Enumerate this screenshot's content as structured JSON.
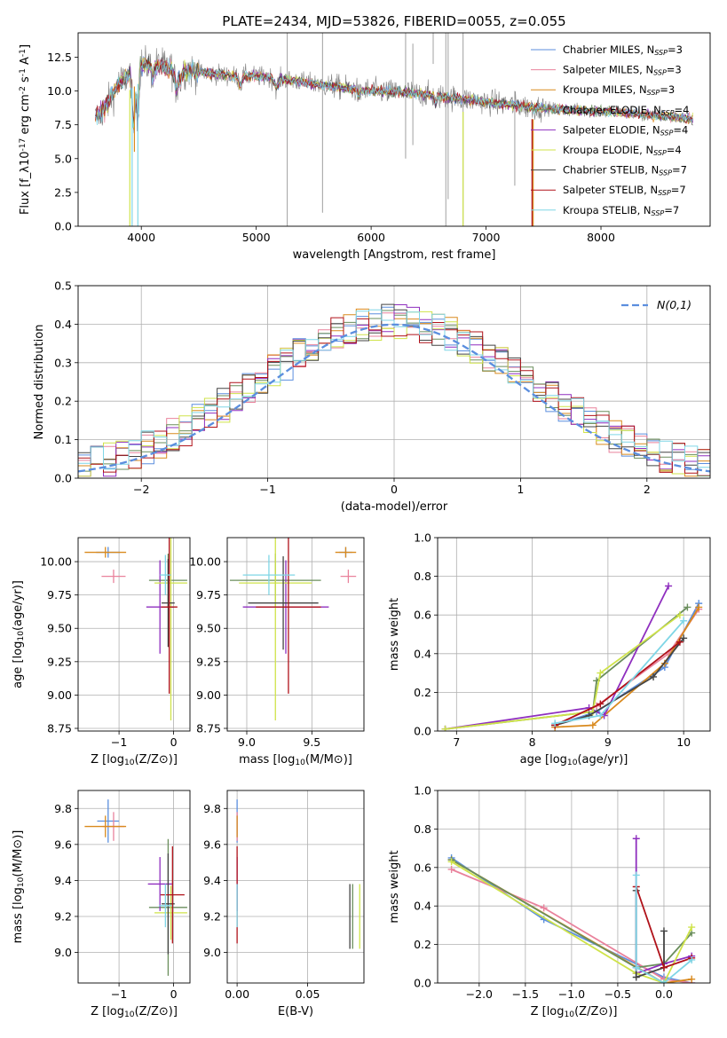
{
  "figure_title": "PLATE=2434, MJD=53826, FIBERID=0055, z=0.055",
  "colors": {
    "Chabrier MILES": "#5b8ede",
    "Salpeter MILES": "#e9829c",
    "Kroupa MILES": "#d98a1e",
    "Chabrier ELODIE": "#6a8e5c",
    "Salpeter ELODIE": "#8f2fbf",
    "Kroupa ELODIE": "#cfe34a",
    "Chabrier STELIB": "#444444",
    "Salpeter STELIB": "#b0121a",
    "Kroupa STELIB": "#7fd6e6",
    "data": "#7f7f7f",
    "normal": "#5b8ede",
    "grid": "#b0b0b0"
  },
  "chart_data": [
    {
      "id": "spectrum",
      "type": "line",
      "title": "",
      "xlabel": "wavelength [Angstrom, rest frame]",
      "ylabel": "Flux [f_λ10^{-17} erg cm^{-2} s^{-1} A^{-1}]",
      "xlim": [
        3450,
        8950
      ],
      "ylim": [
        0,
        14.3
      ],
      "xticks": [
        4000,
        5000,
        6000,
        7000,
        8000
      ],
      "yticks": [
        0.0,
        2.5,
        5.0,
        7.5,
        10.0,
        12.5
      ],
      "grid": false,
      "legend": "upper-right",
      "continuum_knots": {
        "x": [
          3600,
          3700,
          3800,
          3900,
          4000,
          4100,
          4300,
          4600,
          4800,
          5000,
          5300,
          5600,
          6000,
          6300,
          6600,
          6800,
          7100,
          7400,
          7700,
          8000,
          8300,
          8600,
          8800
        ],
        "y": [
          8.0,
          8.9,
          10.5,
          11.2,
          11.9,
          12.0,
          11.6,
          11.3,
          11.1,
          11.1,
          10.8,
          10.4,
          10.0,
          9.9,
          9.6,
          9.4,
          9.1,
          8.8,
          8.6,
          8.5,
          8.3,
          8.1,
          7.9
        ]
      },
      "model_xrange": [
        3600,
        8800
      ],
      "data_xrange": [
        3600,
        8800
      ],
      "legend_entries": [
        "Chabrier MILES, N_{SSP}=3",
        "Salpeter MILES, N_{SSP}=3",
        "Kroupa MILES, N_{SSP}=3",
        "Chabrier ELODIE, N_{SSP}=4",
        "Salpeter ELODIE, N_{SSP}=4",
        "Kroupa ELODIE, N_{SSP}=4",
        "Chabrier STELIB, N_{SSP}=7",
        "Salpeter STELIB, N_{SSP}=7",
        "Kroupa STELIB, N_{SSP}=7"
      ],
      "legend_models": [
        "Chabrier MILES",
        "Salpeter MILES",
        "Kroupa MILES",
        "Chabrier ELODIE",
        "Salpeter ELODIE",
        "Kroupa ELODIE",
        "Chabrier STELIB",
        "Salpeter STELIB",
        "Kroupa STELIB"
      ]
    },
    {
      "id": "residuals",
      "type": "line",
      "xlabel": "(data-model)/error",
      "ylabel": "Normed distribution",
      "xlim": [
        -2.5,
        2.5
      ],
      "ylim": [
        0,
        0.5
      ],
      "xticks": [
        -2,
        -1,
        0,
        1,
        2
      ],
      "yticks": [
        0.0,
        0.1,
        0.2,
        0.3,
        0.4,
        0.5
      ],
      "grid": true,
      "legend": "upper-right",
      "legend_label": "N(0,1)",
      "bin_width": 0.1,
      "bin_start": -2.5,
      "series_models": [
        "Chabrier MILES",
        "Salpeter MILES",
        "Kroupa MILES",
        "Chabrier ELODIE",
        "Salpeter ELODIE",
        "Kroupa ELODIE",
        "Chabrier STELIB",
        "Salpeter STELIB",
        "Kroupa STELIB"
      ]
    },
    {
      "id": "z_age",
      "type": "scatter",
      "xlabel": "Z [log10(Z/Z⊙)]",
      "ylabel": "age [log10(age/yr)]",
      "xlim": [
        -1.75,
        0.3
      ],
      "ylim": [
        8.73,
        10.18
      ],
      "xticks": [
        -1,
        0
      ],
      "yticks": [
        8.75,
        9.0,
        9.25,
        9.5,
        9.75,
        10.0
      ],
      "grid": true,
      "points": [
        {
          "model": "Chabrier MILES",
          "x": -1.2,
          "xerr": 0.22,
          "y": 10.07,
          "yerr": 0.04
        },
        {
          "model": "Salpeter MILES",
          "x": -1.1,
          "xerr": 0.22,
          "y": 9.89,
          "yerr": 0.05
        },
        {
          "model": "Kroupa MILES",
          "x": -1.25,
          "xerr": 0.38,
          "y": 10.07,
          "yerr": 0.04
        },
        {
          "model": "Chabrier ELODIE",
          "x": -0.1,
          "xerr": 0.35,
          "y": 9.86,
          "yerr": 0.2
        },
        {
          "model": "Salpeter ELODIE",
          "x": -0.25,
          "xerr": 0.25,
          "y": 9.66,
          "yerr": 0.35
        },
        {
          "model": "Kroupa ELODIE",
          "x": -0.05,
          "xerr": 0.3,
          "y": 9.84,
          "yerr": 1.03
        },
        {
          "model": "Chabrier STELIB",
          "x": -0.1,
          "xerr": 0.12,
          "y": 9.69,
          "yerr": 0.33
        },
        {
          "model": "Salpeter STELIB",
          "x": -0.08,
          "xerr": 0.15,
          "y": 9.66,
          "yerr": 0.65
        },
        {
          "model": "Kroupa STELIB",
          "x": -0.15,
          "xerr": 0.1,
          "y": 9.9,
          "yerr": 0.15
        }
      ]
    },
    {
      "id": "mass_age",
      "type": "scatter",
      "xlabel": "mass [log10(M/M⊙)]",
      "ylabel": "",
      "xlim": [
        8.85,
        9.9
      ],
      "ylim": [
        8.73,
        10.18
      ],
      "xticks": [
        9.0,
        9.5
      ],
      "yticks": [
        8.75,
        9.0,
        9.25,
        9.5,
        9.75,
        10.0
      ],
      "grid": true,
      "points": [
        {
          "model": "Chabrier MILES",
          "x": 9.76,
          "xerr": 0.05,
          "y": 10.07,
          "yerr": 0.04
        },
        {
          "model": "Salpeter MILES",
          "x": 9.78,
          "xerr": 0.06,
          "y": 9.89,
          "yerr": 0.05
        },
        {
          "model": "Kroupa MILES",
          "x": 9.76,
          "xerr": 0.08,
          "y": 10.07,
          "yerr": 0.04
        },
        {
          "model": "Chabrier ELODIE",
          "x": 9.22,
          "xerr": 0.35,
          "y": 9.86,
          "yerr": 0.2
        },
        {
          "model": "Salpeter ELODIE",
          "x": 9.3,
          "xerr": 0.33,
          "y": 9.66,
          "yerr": 0.35
        },
        {
          "model": "Kroupa ELODIE",
          "x": 9.22,
          "xerr": 0.28,
          "y": 9.84,
          "yerr": 1.03
        },
        {
          "model": "Chabrier STELIB",
          "x": 9.28,
          "xerr": 0.27,
          "y": 9.69,
          "yerr": 0.35
        },
        {
          "model": "Salpeter STELIB",
          "x": 9.32,
          "xerr": 0.25,
          "y": 9.66,
          "yerr": 0.65
        },
        {
          "model": "Kroupa STELIB",
          "x": 9.17,
          "xerr": 0.2,
          "y": 9.9,
          "yerr": 0.15
        }
      ]
    },
    {
      "id": "age_weight",
      "type": "line",
      "xlabel": "age  [log10(age/yr)]",
      "ylabel": "mass weight",
      "xlim": [
        6.75,
        10.35
      ],
      "ylim": [
        0,
        1.0
      ],
      "xticks": [
        7,
        8,
        9,
        10
      ],
      "yticks": [
        0.0,
        0.2,
        0.4,
        0.6,
        0.8,
        1.0
      ],
      "grid": true,
      "series": [
        {
          "model": "Chabrier MILES",
          "x": [
            8.3,
            8.85,
            9.75,
            10.2
          ],
          "y": [
            0.03,
            0.1,
            0.33,
            0.66
          ]
        },
        {
          "model": "Salpeter MILES",
          "x": [
            8.3,
            8.85,
            9.8,
            10.2
          ],
          "y": [
            0.03,
            0.13,
            0.4,
            0.63
          ]
        },
        {
          "model": "Kroupa MILES",
          "x": [
            8.3,
            8.8,
            9.75,
            10.2
          ],
          "y": [
            0.02,
            0.03,
            0.35,
            0.64
          ]
        },
        {
          "model": "Chabrier ELODIE",
          "x": [
            6.85,
            8.8,
            8.85,
            10.05
          ],
          "y": [
            0.01,
            0.1,
            0.26,
            0.64
          ]
        },
        {
          "model": "Salpeter ELODIE",
          "x": [
            6.85,
            8.75,
            8.95,
            9.8
          ],
          "y": [
            0.01,
            0.12,
            0.08,
            0.75
          ]
        },
        {
          "model": "Kroupa ELODIE",
          "x": [
            6.85,
            8.8,
            8.9,
            9.95
          ],
          "y": [
            0.01,
            0.1,
            0.3,
            0.6
          ]
        },
        {
          "model": "Chabrier STELIB",
          "x": [
            8.3,
            8.75,
            9.6,
            10.0
          ],
          "y": [
            0.03,
            0.08,
            0.28,
            0.48
          ]
        },
        {
          "model": "Salpeter STELIB",
          "x": [
            8.3,
            8.9,
            9.95
          ],
          "y": [
            0.03,
            0.14,
            0.46
          ]
        },
        {
          "model": "Kroupa STELIB",
          "x": [
            8.3,
            8.9,
            10.0
          ],
          "y": [
            0.04,
            0.08,
            0.57
          ]
        }
      ]
    },
    {
      "id": "z_mass",
      "type": "scatter",
      "xlabel": "Z [log10(Z/Z⊙)]",
      "ylabel": "mass [log10(M/M⊙)]",
      "xlim": [
        -1.75,
        0.3
      ],
      "ylim": [
        8.83,
        9.9
      ],
      "xticks": [
        -1,
        0
      ],
      "yticks": [
        9.0,
        9.2,
        9.4,
        9.6,
        9.8
      ],
      "grid": true,
      "points": [
        {
          "model": "Chabrier MILES",
          "x": -1.2,
          "xerr": 0.2,
          "y": 9.73,
          "yerr": 0.12
        },
        {
          "model": "Salpeter MILES",
          "x": -1.1,
          "xerr": 0.2,
          "y": 9.7,
          "yerr": 0.08
        },
        {
          "model": "Kroupa MILES",
          "x": -1.25,
          "xerr": 0.38,
          "y": 9.7,
          "yerr": 0.06
        },
        {
          "model": "Chabrier ELODIE",
          "x": -0.1,
          "xerr": 0.35,
          "y": 9.25,
          "yerr": 0.38
        },
        {
          "model": "Salpeter ELODIE",
          "x": -0.25,
          "xerr": 0.22,
          "y": 9.38,
          "yerr": 0.15
        },
        {
          "model": "Kroupa ELODIE",
          "x": -0.05,
          "xerr": 0.3,
          "y": 9.22,
          "yerr": 0.15
        },
        {
          "model": "Chabrier STELIB",
          "x": -0.1,
          "xerr": 0.12,
          "y": 9.27,
          "yerr": 0.28
        },
        {
          "model": "Salpeter STELIB",
          "x": -0.02,
          "xerr": 0.22,
          "y": 9.32,
          "yerr": 0.27
        },
        {
          "model": "Kroupa STELIB",
          "x": -0.15,
          "xerr": 0.12,
          "y": 9.26,
          "yerr": 0.12
        }
      ]
    },
    {
      "id": "ebv_mass",
      "type": "scatter",
      "xlabel": "E(B-V)",
      "ylabel": "",
      "xlim": [
        -0.007,
        0.09
      ],
      "ylim": [
        8.83,
        9.9
      ],
      "xticks": [
        0.0,
        0.05
      ],
      "yticks": [
        9.0,
        9.2,
        9.4,
        9.6,
        9.8
      ],
      "grid": true,
      "points": [
        {
          "model": "Chabrier MILES",
          "x": 0.0,
          "y": 9.73,
          "yerr": 0.12
        },
        {
          "model": "Salpeter MILES",
          "x": 0.0,
          "y": 9.7,
          "yerr": 0.08
        },
        {
          "model": "Kroupa MILES",
          "x": 0.0,
          "y": 9.7,
          "yerr": 0.06
        },
        {
          "model": "Chabrier ELODIE",
          "x": 0.082,
          "y": 9.2,
          "yerr": 0.18
        },
        {
          "model": "Salpeter ELODIE",
          "x": 0.0,
          "y": 9.38,
          "yerr": 0.15
        },
        {
          "model": "Kroupa ELODIE",
          "x": 0.087,
          "y": 9.2,
          "yerr": 0.18
        },
        {
          "model": "Chabrier STELIB",
          "x": 0.08,
          "y": 9.2,
          "yerr": 0.18
        },
        {
          "model": "Salpeter STELIB",
          "x": 0.0,
          "y": 9.32,
          "yerr": 0.27
        },
        {
          "model": "Kroupa STELIB",
          "x": 0.0,
          "y": 9.26,
          "yerr": 0.12
        }
      ]
    },
    {
      "id": "z_weight",
      "type": "line",
      "xlabel": "Z [log10(Z/Z⊙)]",
      "ylabel": "mass weight",
      "xlim": [
        -2.45,
        0.5
      ],
      "ylim": [
        0,
        1.0
      ],
      "xticks": [
        -2.0,
        -1.5,
        -1.0,
        -0.5,
        0.0
      ],
      "yticks": [
        0.0,
        0.2,
        0.4,
        0.6,
        0.8,
        1.0
      ],
      "grid": true,
      "series": [
        {
          "model": "Chabrier MILES",
          "x": [
            -2.3,
            -1.3,
            0.0,
            0.3
          ],
          "y": [
            0.65,
            0.33,
            0.03,
            0.0
          ]
        },
        {
          "model": "Salpeter MILES",
          "x": [
            -2.3,
            -1.3,
            0.0,
            0.3
          ],
          "y": [
            0.59,
            0.39,
            0.02,
            0.0
          ]
        },
        {
          "model": "Kroupa MILES",
          "x": [
            -2.3,
            0.0,
            0.3
          ],
          "y": [
            0.64,
            0.0,
            0.02
          ]
        },
        {
          "model": "Chabrier ELODIE",
          "x": [
            -2.3,
            -0.3,
            0.0,
            0.3
          ],
          "y": [
            0.64,
            0.08,
            0.1,
            0.26
          ]
        },
        {
          "model": "Salpeter ELODIE",
          "x": [
            -0.3,
            -0.3,
            0.0,
            0.3
          ],
          "y": [
            0.75,
            0.05,
            0.1,
            0.14
          ]
        },
        {
          "model": "Kroupa ELODIE",
          "x": [
            -2.3,
            -0.3,
            0.0,
            0.3
          ],
          "y": [
            0.63,
            0.05,
            0.0,
            0.29
          ]
        },
        {
          "model": "Chabrier STELIB",
          "x": [
            -0.3,
            -0.3,
            0.0,
            0.0
          ],
          "y": [
            0.48,
            0.03,
            0.08,
            0.27
          ]
        },
        {
          "model": "Salpeter STELIB",
          "x": [
            -0.3,
            0.0,
            0.3
          ],
          "y": [
            0.5,
            0.08,
            0.13
          ]
        },
        {
          "model": "Kroupa STELIB",
          "x": [
            -0.3,
            -0.3,
            0.0,
            0.3
          ],
          "y": [
            0.56,
            0.08,
            0.0,
            0.12
          ]
        }
      ]
    }
  ]
}
